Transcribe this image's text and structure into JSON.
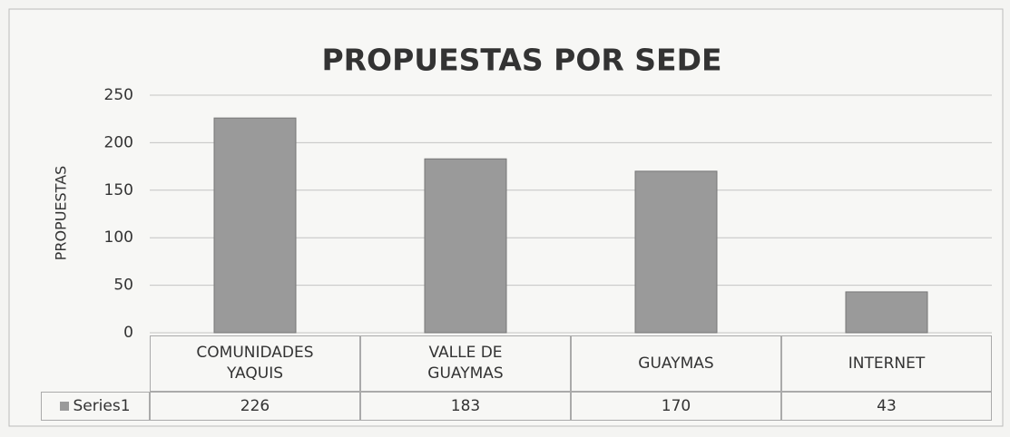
{
  "chart_data": {
    "type": "bar",
    "title": "PROPUESTAS POR SEDE",
    "y_label": "PROPUESTAS",
    "categories": [
      "COMUNIDADES YAQUIS",
      "VALLE DE GUAYMAS",
      "GUAYMAS",
      "INTERNET"
    ],
    "series": [
      {
        "name": "Series1",
        "color": "#9a9a9a",
        "values": [
          226,
          183,
          170,
          43
        ]
      }
    ],
    "ylim": [
      0,
      250
    ],
    "yticks": [
      0,
      50,
      100,
      150,
      200,
      250
    ],
    "grid": true,
    "data_table": true
  }
}
